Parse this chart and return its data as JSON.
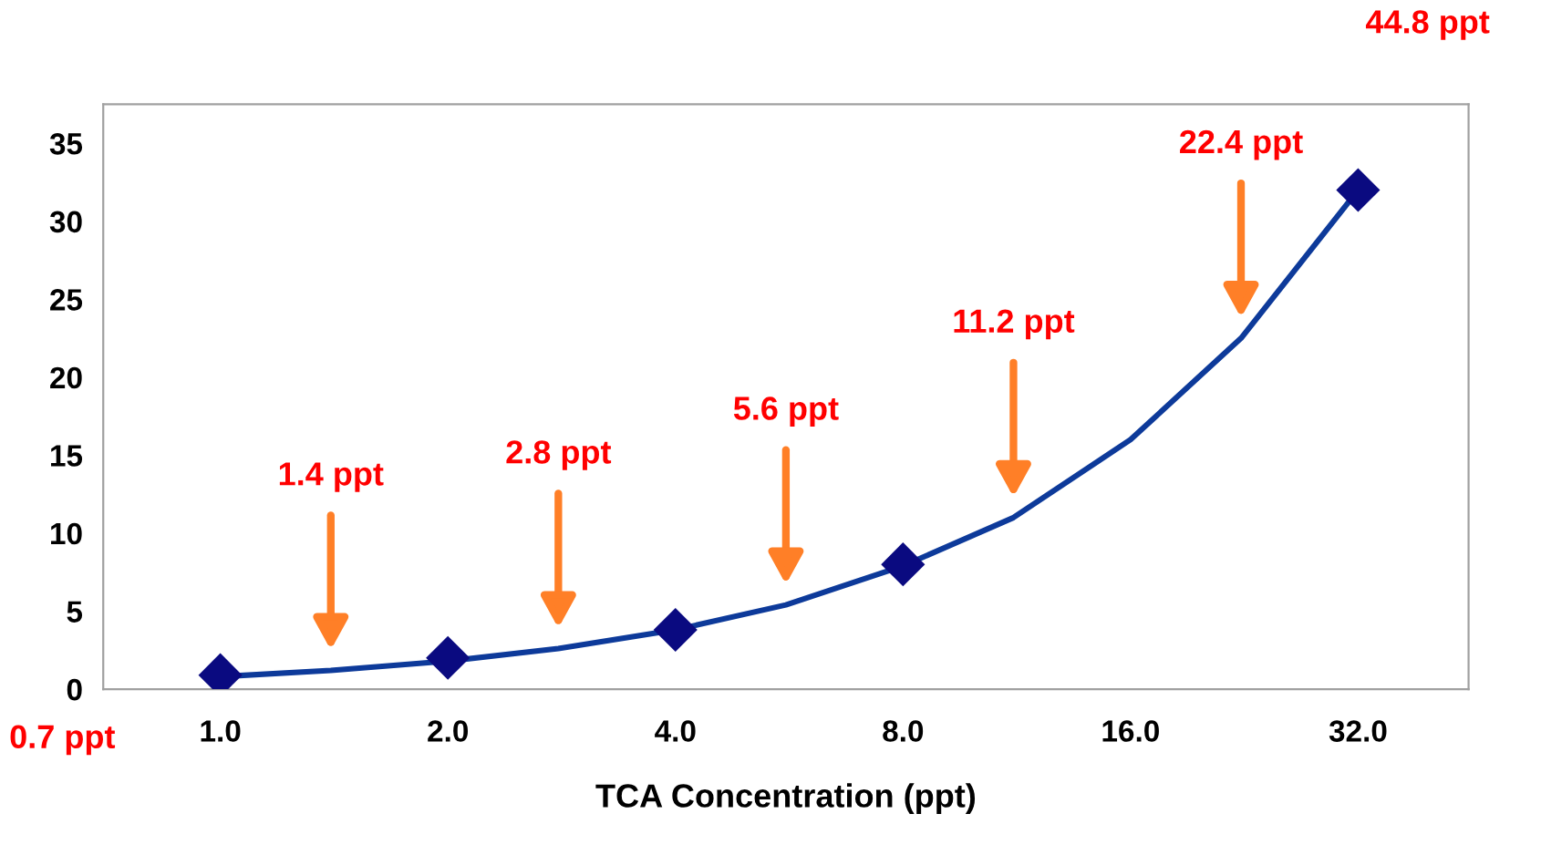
{
  "chart_data": {
    "type": "scatter",
    "xlabel": "TCA Concentration (ppt)",
    "log": "x",
    "xlim": [
      0.7,
      44.8
    ],
    "xticks": [
      {
        "value": 1,
        "label": "1.0"
      },
      {
        "value": 2,
        "label": "2.0"
      },
      {
        "value": 4,
        "label": "4.0"
      },
      {
        "value": 8,
        "label": "8.0"
      },
      {
        "value": 16,
        "label": "16.0"
      },
      {
        "value": 32,
        "label": "32.0"
      }
    ],
    "ylim": [
      0,
      37.5
    ],
    "yticks": [
      0,
      5,
      10,
      15,
      20,
      25,
      30,
      35
    ],
    "grid": false,
    "legend": false,
    "series": [
      {
        "type": "line",
        "color": "#0d3a9a",
        "marker": "none",
        "line_style": "solid",
        "x": [
          1,
          1.4,
          2,
          2.8,
          4,
          5.6,
          8,
          11.2,
          16,
          22.4,
          32
        ],
        "values": [
          0.8,
          1.2,
          1.8,
          2.6,
          3.8,
          5.4,
          7.9,
          11,
          16,
          22.5,
          32
        ]
      },
      {
        "color": "#0a0a80",
        "marker": "diamond",
        "x": [
          1,
          2,
          4,
          8,
          32
        ],
        "values": [
          0.9,
          2,
          3.8,
          8,
          32
        ]
      }
    ],
    "annotations": [
      "0.7 ppt",
      "1.4 ppt",
      "2.8 ppt",
      "5.6 ppt",
      "11.2 ppt",
      "22.4 ppt",
      "44.8 ppt"
    ]
  }
}
